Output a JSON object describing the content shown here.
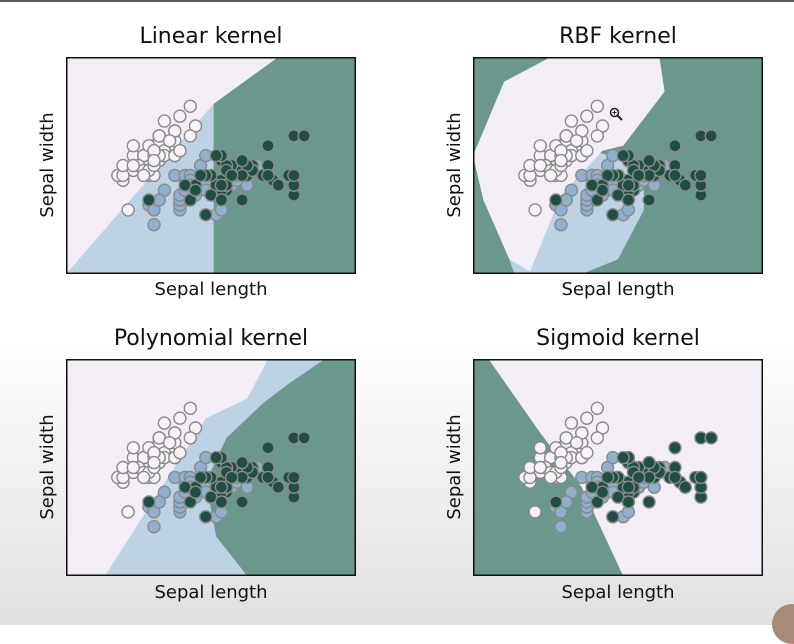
{
  "colors": {
    "class0_region": "#f3eef5",
    "class1_region": "#bdd3e5",
    "class2_region": "#6b988c",
    "class0_point": "#f6f2f8",
    "class1_point": "#8fb1cf",
    "class2_point": "#1f4f43",
    "point_edge": "#8a8a8a"
  },
  "chart_data": [
    {
      "type": "scatter",
      "title": "Linear kernel",
      "xlabel": "Sepal length",
      "ylabel": "Sepal width",
      "xlim": [
        3.3,
        8.9
      ],
      "ylim": [
        1.0,
        5.4
      ],
      "regions": [
        {
          "class": 0,
          "polygon": [
            [
              3.3,
              1.0
            ],
            [
              3.3,
              5.4
            ],
            [
              7.4,
              5.4
            ],
            [
              6.15,
              4.45
            ],
            [
              6.15,
              1.0
            ]
          ]
        },
        {
          "class": 1,
          "polygon": [
            [
              3.3,
              1.0
            ],
            [
              6.15,
              1.0
            ],
            [
              6.15,
              4.45
            ]
          ]
        },
        {
          "class": 2,
          "polygon": [
            [
              6.15,
              1.0
            ],
            [
              6.15,
              4.45
            ],
            [
              7.4,
              5.4
            ],
            [
              8.9,
              5.4
            ],
            [
              8.9,
              1.0
            ]
          ]
        }
      ],
      "series": []
    },
    {
      "type": "scatter",
      "title": "RBF kernel",
      "xlabel": "Sepal length",
      "ylabel": "Sepal width",
      "xlim": [
        3.3,
        8.9
      ],
      "ylim": [
        1.0,
        5.4
      ],
      "regions": [
        {
          "class": 2,
          "polygon": [
            [
              3.3,
              1.0
            ],
            [
              3.3,
              5.4
            ],
            [
              8.9,
              5.4
            ],
            [
              8.9,
              1.0
            ]
          ]
        },
        {
          "class": 1,
          "polygon": [
            [
              4.1,
              1.0
            ],
            [
              3.9,
              1.6
            ],
            [
              4.4,
              2.6
            ],
            [
              5.6,
              3.5
            ],
            [
              6.6,
              3.2
            ],
            [
              6.6,
              2.3
            ],
            [
              6.1,
              1.3
            ],
            [
              5.4,
              1.0
            ]
          ]
        },
        {
          "class": 0,
          "polygon": [
            [
              3.3,
              3.4
            ],
            [
              3.9,
              4.9
            ],
            [
              4.8,
              5.4
            ],
            [
              6.9,
              5.4
            ],
            [
              7.0,
              4.7
            ],
            [
              6.2,
              3.6
            ],
            [
              5.8,
              3.5
            ],
            [
              5.0,
              2.6
            ],
            [
              4.4,
              1.05
            ],
            [
              4.0,
              1.3
            ],
            [
              3.5,
              2.5
            ]
          ]
        }
      ],
      "series": []
    },
    {
      "type": "scatter",
      "title": "Polynomial kernel",
      "xlabel": "Sepal length",
      "ylabel": "Sepal width",
      "xlim": [
        3.3,
        8.9
      ],
      "ylim": [
        1.0,
        5.4
      ],
      "regions": [
        {
          "class": 0,
          "polygon": [
            [
              3.3,
              1.0
            ],
            [
              3.3,
              5.4
            ],
            [
              8.9,
              5.4
            ],
            [
              8.9,
              1.0
            ]
          ]
        },
        {
          "class": 1,
          "polygon": [
            [
              4.05,
              1.0
            ],
            [
              6.0,
              4.2
            ],
            [
              6.8,
              4.6
            ],
            [
              7.2,
              5.4
            ],
            [
              8.9,
              5.4
            ],
            [
              8.9,
              1.0
            ]
          ]
        },
        {
          "class": 2,
          "polygon": [
            [
              6.8,
              1.0
            ],
            [
              6.2,
              1.8
            ],
            [
              6.0,
              2.9
            ],
            [
              6.4,
              3.8
            ],
            [
              7.1,
              4.5
            ],
            [
              7.6,
              4.9
            ],
            [
              8.3,
              5.4
            ],
            [
              8.9,
              5.4
            ],
            [
              8.9,
              1.0
            ]
          ]
        }
      ],
      "series": []
    },
    {
      "type": "scatter",
      "title": "Sigmoid kernel",
      "xlabel": "Sepal length",
      "ylabel": "Sepal width",
      "xlim": [
        3.3,
        8.9
      ],
      "ylim": [
        1.0,
        5.4
      ],
      "regions": [
        {
          "class": 0,
          "polygon": [
            [
              3.3,
              1.0
            ],
            [
              3.3,
              5.4
            ],
            [
              8.9,
              5.4
            ],
            [
              8.9,
              1.0
            ]
          ]
        },
        {
          "class": 1,
          "polygon": [
            [
              3.3,
              3.6
            ],
            [
              3.3,
              1.0
            ],
            [
              6.0,
              1.0
            ],
            [
              5.2,
              2.2
            ],
            [
              4.6,
              3.0
            ]
          ]
        },
        {
          "class": 2,
          "polygon": [
            [
              3.3,
              5.4
            ],
            [
              3.6,
              5.4
            ],
            [
              4.6,
              3.9
            ],
            [
              5.4,
              2.8
            ],
            [
              6.2,
              1.0
            ],
            [
              3.3,
              1.0
            ]
          ]
        }
      ],
      "series": []
    }
  ],
  "iris_points": {
    "class0": [
      [
        5.1,
        3.5
      ],
      [
        4.9,
        3.0
      ],
      [
        4.7,
        3.2
      ],
      [
        4.6,
        3.1
      ],
      [
        5.0,
        3.6
      ],
      [
        5.4,
        3.9
      ],
      [
        4.6,
        3.4
      ],
      [
        5.0,
        3.4
      ],
      [
        4.4,
        2.9
      ],
      [
        4.9,
        3.1
      ],
      [
        5.4,
        3.7
      ],
      [
        4.8,
        3.4
      ],
      [
        4.8,
        3.0
      ],
      [
        4.3,
        3.0
      ],
      [
        5.8,
        4.0
      ],
      [
        5.7,
        4.4
      ],
      [
        5.4,
        3.9
      ],
      [
        5.1,
        3.5
      ],
      [
        5.7,
        3.8
      ],
      [
        5.1,
        3.8
      ],
      [
        5.4,
        3.4
      ],
      [
        5.1,
        3.7
      ],
      [
        4.6,
        3.6
      ],
      [
        5.1,
        3.3
      ],
      [
        4.8,
        3.4
      ],
      [
        5.0,
        3.0
      ],
      [
        5.0,
        3.4
      ],
      [
        5.2,
        3.5
      ],
      [
        5.2,
        3.4
      ],
      [
        4.7,
        3.2
      ],
      [
        4.8,
        3.1
      ],
      [
        5.4,
        3.4
      ],
      [
        5.2,
        4.1
      ],
      [
        5.5,
        4.2
      ],
      [
        4.9,
        3.1
      ],
      [
        5.0,
        3.2
      ],
      [
        5.5,
        3.5
      ],
      [
        4.9,
        3.6
      ],
      [
        4.4,
        3.0
      ],
      [
        5.1,
        3.4
      ],
      [
        5.0,
        3.5
      ],
      [
        4.5,
        2.3
      ],
      [
        4.4,
        3.2
      ],
      [
        5.0,
        3.5
      ],
      [
        5.1,
        3.8
      ],
      [
        4.8,
        3.0
      ],
      [
        5.1,
        3.8
      ],
      [
        4.6,
        3.2
      ],
      [
        5.3,
        3.7
      ],
      [
        5.0,
        3.3
      ]
    ],
    "class1": [
      [
        7.0,
        3.2
      ],
      [
        6.4,
        3.2
      ],
      [
        6.9,
        3.1
      ],
      [
        5.5,
        2.3
      ],
      [
        6.5,
        2.8
      ],
      [
        5.7,
        2.8
      ],
      [
        6.3,
        3.3
      ],
      [
        4.9,
        2.4
      ],
      [
        6.6,
        2.9
      ],
      [
        5.2,
        2.7
      ],
      [
        5.0,
        2.0
      ],
      [
        5.9,
        3.0
      ],
      [
        6.0,
        2.2
      ],
      [
        6.1,
        2.9
      ],
      [
        5.6,
        2.9
      ],
      [
        6.7,
        3.1
      ],
      [
        5.6,
        3.0
      ],
      [
        5.8,
        2.7
      ],
      [
        6.2,
        2.2
      ],
      [
        5.6,
        2.5
      ],
      [
        5.9,
        3.2
      ],
      [
        6.1,
        2.8
      ],
      [
        6.3,
        2.5
      ],
      [
        6.1,
        2.8
      ],
      [
        6.4,
        2.9
      ],
      [
        6.6,
        3.0
      ],
      [
        6.8,
        2.8
      ],
      [
        6.7,
        3.0
      ],
      [
        6.0,
        2.9
      ],
      [
        5.7,
        2.6
      ],
      [
        5.5,
        2.4
      ],
      [
        5.5,
        2.4
      ],
      [
        5.8,
        2.7
      ],
      [
        6.0,
        2.7
      ],
      [
        5.4,
        3.0
      ],
      [
        6.0,
        3.4
      ],
      [
        6.7,
        3.1
      ],
      [
        6.3,
        2.3
      ],
      [
        5.6,
        3.0
      ],
      [
        5.5,
        2.5
      ],
      [
        5.5,
        2.6
      ],
      [
        6.1,
        3.0
      ],
      [
        5.8,
        2.6
      ],
      [
        5.0,
        2.3
      ],
      [
        5.6,
        2.7
      ],
      [
        5.7,
        3.0
      ],
      [
        5.7,
        2.9
      ],
      [
        6.2,
        2.9
      ],
      [
        5.1,
        2.5
      ],
      [
        5.7,
        2.8
      ]
    ],
    "class2": [
      [
        6.3,
        3.3
      ],
      [
        5.8,
        2.7
      ],
      [
        7.1,
        3.0
      ],
      [
        6.3,
        2.9
      ],
      [
        6.5,
        3.0
      ],
      [
        7.6,
        3.0
      ],
      [
        4.9,
        2.5
      ],
      [
        7.3,
        2.9
      ],
      [
        6.7,
        2.5
      ],
      [
        7.2,
        3.6
      ],
      [
        6.5,
        3.2
      ],
      [
        6.4,
        2.7
      ],
      [
        6.8,
        3.0
      ],
      [
        5.7,
        2.5
      ],
      [
        5.8,
        2.8
      ],
      [
        6.4,
        3.2
      ],
      [
        6.5,
        3.0
      ],
      [
        7.7,
        3.8
      ],
      [
        7.7,
        2.6
      ],
      [
        6.0,
        2.2
      ],
      [
        6.9,
        3.2
      ],
      [
        5.6,
        2.8
      ],
      [
        7.7,
        2.8
      ],
      [
        6.3,
        2.7
      ],
      [
        6.7,
        3.3
      ],
      [
        7.2,
        3.2
      ],
      [
        6.2,
        2.8
      ],
      [
        6.1,
        3.0
      ],
      [
        6.4,
        2.8
      ],
      [
        7.2,
        3.0
      ],
      [
        7.4,
        2.8
      ],
      [
        7.9,
        3.8
      ],
      [
        6.4,
        2.8
      ],
      [
        6.3,
        2.8
      ],
      [
        6.1,
        2.6
      ],
      [
        7.7,
        3.0
      ],
      [
        6.3,
        3.4
      ],
      [
        6.4,
        3.1
      ],
      [
        6.0,
        3.0
      ],
      [
        6.9,
        3.1
      ],
      [
        6.7,
        3.1
      ],
      [
        6.9,
        3.1
      ],
      [
        5.8,
        2.7
      ],
      [
        6.8,
        3.2
      ],
      [
        6.7,
        3.3
      ],
      [
        6.7,
        3.0
      ],
      [
        6.3,
        2.5
      ],
      [
        6.5,
        3.0
      ],
      [
        6.2,
        3.4
      ],
      [
        5.9,
        3.0
      ]
    ]
  }
}
